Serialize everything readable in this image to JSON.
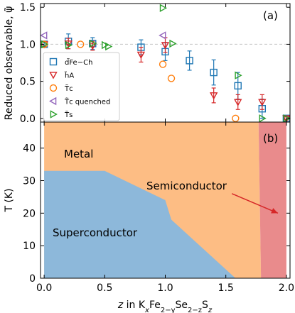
{
  "chart_data": [
    {
      "type": "scatter",
      "panel_label": "(a)",
      "ylabel": "Reduced observable, ψ̃",
      "xlim": [
        -0.03,
        2.03
      ],
      "ylim": [
        -0.05,
        1.55
      ],
      "y_ticks": [
        "0.0",
        "0.5",
        "1.0",
        "1.5"
      ],
      "reference_line": 1.0,
      "legend_position": "middle-left",
      "series": [
        {
          "name": "d̃Fe−Ch",
          "marker": "square",
          "color": "#1f77b4",
          "points": [
            {
              "x": 0.0,
              "y": 1.0,
              "err": 0.03
            },
            {
              "x": 0.2,
              "y": 1.04,
              "err": 0.1
            },
            {
              "x": 0.4,
              "y": 1.01,
              "err": 0.08
            },
            {
              "x": 0.8,
              "y": 0.96,
              "err": 0.1
            },
            {
              "x": 1.0,
              "y": 0.9,
              "err": 0.12
            },
            {
              "x": 1.2,
              "y": 0.78,
              "err": 0.13
            },
            {
              "x": 1.4,
              "y": 0.62,
              "err": 0.17
            },
            {
              "x": 1.6,
              "y": 0.44,
              "err": 0.18
            },
            {
              "x": 1.8,
              "y": 0.13,
              "err": 0.13
            },
            {
              "x": 2.0,
              "y": 0.0,
              "err": 0.02
            }
          ]
        },
        {
          "name": "h̃A",
          "marker": "triangle-down",
          "color": "#d62728",
          "points": [
            {
              "x": 0.0,
              "y": 1.0,
              "err": 0.0
            },
            {
              "x": 0.2,
              "y": 1.01,
              "err": 0.07
            },
            {
              "x": 0.4,
              "y": 0.98,
              "err": 0.06
            },
            {
              "x": 0.8,
              "y": 0.86,
              "err": 0.1
            },
            {
              "x": 1.0,
              "y": 0.99,
              "err": 0.1
            },
            {
              "x": 1.4,
              "y": 0.31,
              "err": 0.1
            },
            {
              "x": 1.6,
              "y": 0.22,
              "err": 0.1
            },
            {
              "x": 1.8,
              "y": 0.22,
              "err": 0.1
            },
            {
              "x": 2.0,
              "y": 0.0,
              "err": 0.02
            }
          ]
        },
        {
          "name": "T̃c",
          "marker": "circle",
          "color": "#ff7f0e",
          "points": [
            {
              "x": 0.0,
              "y": 1.0
            },
            {
              "x": 0.3,
              "y": 1.0
            },
            {
              "x": 0.98,
              "y": 0.73
            },
            {
              "x": 1.05,
              "y": 0.54
            },
            {
              "x": 1.58,
              "y": 0.0
            }
          ]
        },
        {
          "name": "T̃c quenched",
          "marker": "triangle-left",
          "color": "#9467bd",
          "points": [
            {
              "x": 0.0,
              "y": 1.12
            },
            {
              "x": 0.98,
              "y": 1.12
            }
          ]
        },
        {
          "name": "T̃s",
          "marker": "triangle-right",
          "color": "#2ca02c",
          "points": [
            {
              "x": 0.0,
              "y": 1.0
            },
            {
              "x": 0.2,
              "y": 0.99
            },
            {
              "x": 0.4,
              "y": 1.01
            },
            {
              "x": 0.5,
              "y": 0.99
            },
            {
              "x": 0.53,
              "y": 0.97
            },
            {
              "x": 0.98,
              "y": 1.49
            },
            {
              "x": 1.06,
              "y": 1.01
            },
            {
              "x": 1.6,
              "y": 0.58
            },
            {
              "x": 1.8,
              "y": 0.0
            },
            {
              "x": 2.0,
              "y": 0.0
            }
          ]
        }
      ]
    },
    {
      "type": "area",
      "panel_label": "(b)",
      "xlabel_parts": [
        "z",
        " in K",
        "x",
        "Fe",
        "2−y",
        "Se",
        "2−z",
        "S",
        "z"
      ],
      "ylabel": "T (K)",
      "xlim": [
        -0.03,
        2.03
      ],
      "ylim": [
        0,
        48
      ],
      "x_ticks": [
        "0.0",
        "0.5",
        "1.0",
        "1.5",
        "2.0"
      ],
      "y_ticks": [
        "0",
        "10",
        "20",
        "30",
        "40"
      ],
      "regions": [
        {
          "name": "Metal",
          "color": "#fdbd84",
          "boundary": [
            [
              0,
              0
            ],
            [
              1.58,
              0
            ],
            [
              1.79,
              0
            ],
            [
              1.79,
              1
            ],
            [
              1.77,
              48
            ],
            [
              0,
              48
            ]
          ]
        },
        {
          "name": "Semiconductor",
          "color": "#e98b8c",
          "boundary": [
            [
              1.79,
              0
            ],
            [
              2.0,
              0
            ],
            [
              2.0,
              48
            ],
            [
              1.77,
              48
            ],
            [
              1.79,
              1
            ]
          ]
        },
        {
          "name": "Superconductor",
          "color": "#8db8da",
          "boundary": [
            [
              0,
              0
            ],
            [
              0,
              33
            ],
            [
              0.5,
              33
            ],
            [
              1.0,
              24
            ],
            [
              1.05,
              18
            ],
            [
              1.58,
              0
            ]
          ]
        }
      ],
      "labels": [
        "Metal",
        "Semiconductor",
        "Superconductor"
      ],
      "arrow": {
        "from": [
          1.55,
          26
        ],
        "to": [
          1.93,
          20
        ]
      }
    }
  ]
}
